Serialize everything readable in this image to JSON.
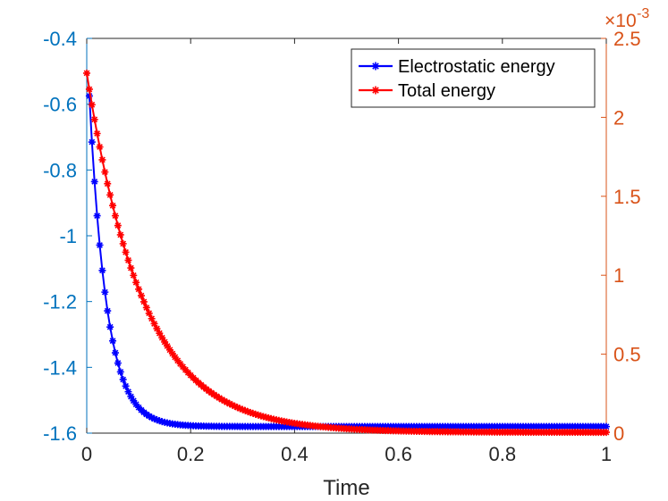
{
  "chart_data": {
    "type": "line",
    "xlabel": "Time",
    "xlim": [
      0,
      1
    ],
    "x_ticks": [
      "0",
      "0.2",
      "0.4",
      "0.6",
      "0.8",
      "1"
    ],
    "y_left": {
      "lim": [
        -1.6,
        -0.4
      ],
      "ticks": [
        "-0.4",
        "-0.6",
        "-0.8",
        "-1",
        "-1.2",
        "-1.4",
        "-1.6"
      ],
      "color": "#0072BD"
    },
    "y_right": {
      "lim": [
        0,
        0.0025
      ],
      "ticks": [
        "2.5",
        "2",
        "1.5",
        "1",
        "0.5",
        "0"
      ],
      "exponent_label": "×10",
      "exponent_power": "-3",
      "color": "#D95319"
    },
    "series": [
      {
        "name": "Electrostatic energy",
        "axis": "left",
        "color": "#0000FF",
        "marker": "asterisk",
        "curve": {
          "start": -0.575,
          "end": -1.58,
          "decay_rate": 30,
          "t0": 0.005,
          "t_end": 1.0,
          "step": 0.005
        }
      },
      {
        "name": "Total energy",
        "axis": "right",
        "color": "#FF0000",
        "marker": "asterisk",
        "curve": {
          "start": 0.00228,
          "end": 5e-06,
          "decay_rate": 9.2,
          "t0": 0.0,
          "t_end": 1.0,
          "step": 0.005
        }
      }
    ],
    "legend_position": "top-right"
  }
}
